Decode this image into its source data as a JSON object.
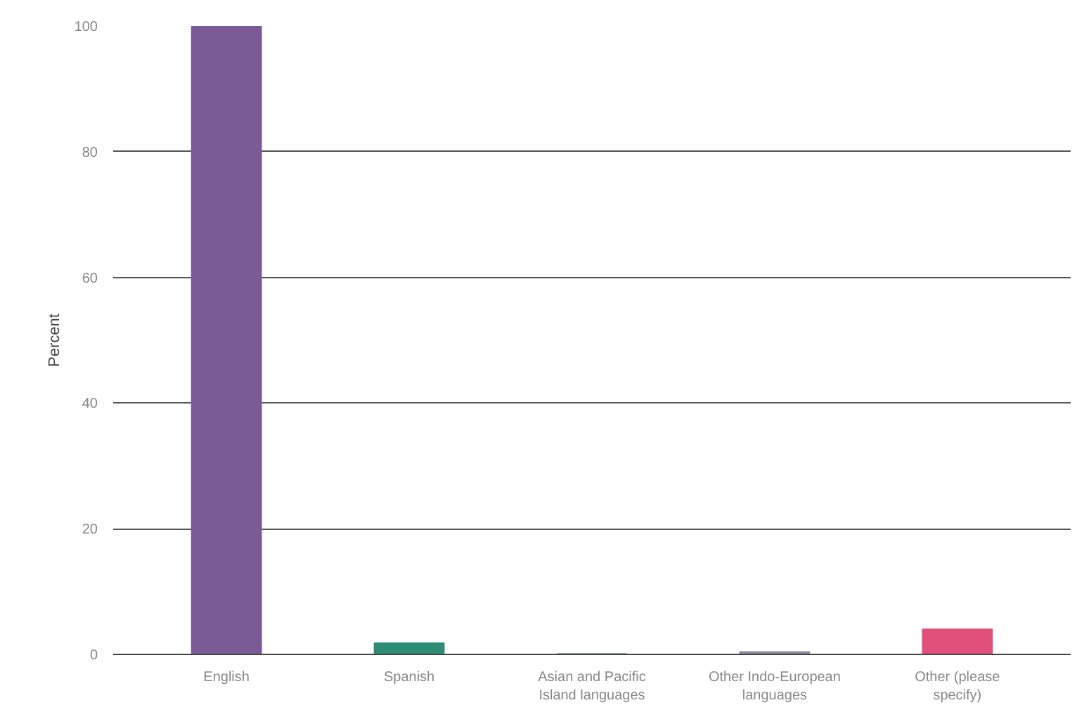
{
  "chart_data": {
    "type": "bar",
    "ylabel": "Percent",
    "categories": [
      "English",
      "Spanish",
      "Asian and Pacific Island languages",
      "Other Indo-European languages",
      "Other (please specify)"
    ],
    "values": [
      100,
      1.8,
      0.1,
      0.4,
      4.0
    ],
    "colors": [
      "#7b5b96",
      "#2e8b74",
      "#9aa8b0",
      "#8a8aa0",
      "#e0507a"
    ],
    "ylim": [
      0,
      100
    ],
    "yticks": [
      0,
      20,
      40,
      60,
      80,
      100
    ],
    "grid": "y"
  }
}
